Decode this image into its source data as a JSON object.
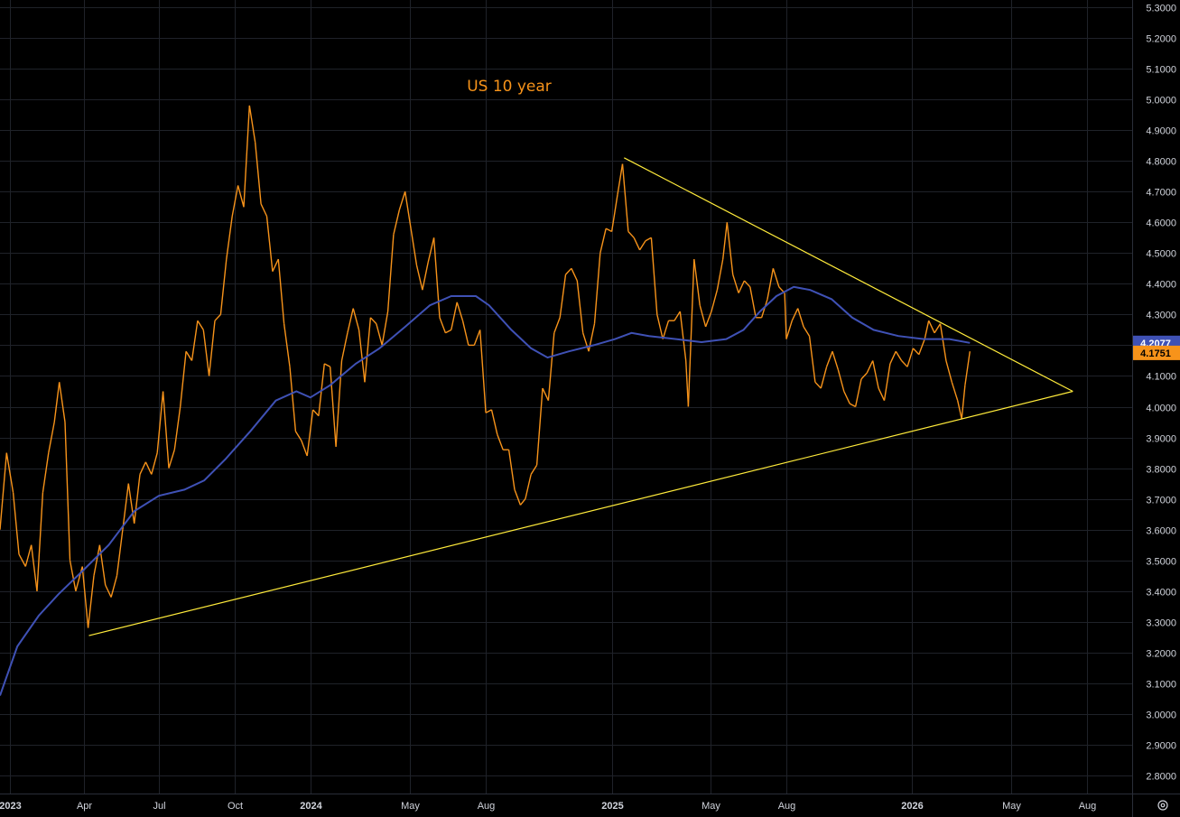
{
  "chart_data": {
    "type": "line",
    "title": "US 10 year",
    "xlabel": "",
    "ylabel": "",
    "ylim": [
      2.75,
      5.32
    ],
    "xlim": [
      "2022-12-20",
      "2026-09-25"
    ],
    "y_ticks": [
      "5.3000",
      "5.2000",
      "5.1000",
      "5.0000",
      "4.9000",
      "4.8000",
      "4.7000",
      "4.6000",
      "4.5000",
      "4.4000",
      "4.3000",
      "4.2000",
      "4.1000",
      "4.0000",
      "3.9000",
      "3.8000",
      "3.7000",
      "3.6000",
      "3.5000",
      "3.4000",
      "3.3000",
      "3.2000",
      "3.1000",
      "3.0000",
      "2.9000",
      "2.8000"
    ],
    "x_ticks": [
      {
        "label": "2023",
        "date": "2023-01-01",
        "major": true
      },
      {
        "label": "Apr",
        "date": "2023-04-01",
        "major": false
      },
      {
        "label": "Jul",
        "date": "2023-07-01",
        "major": false
      },
      {
        "label": "Oct",
        "date": "2023-10-01",
        "major": false
      },
      {
        "label": "2024",
        "date": "2024-01-01",
        "major": true
      },
      {
        "label": "May",
        "date": "2024-05-01",
        "major": false
      },
      {
        "label": "Aug",
        "date": "2024-08-01",
        "major": false
      },
      {
        "label": "2025",
        "date": "2025-01-01",
        "major": true
      },
      {
        "label": "May",
        "date": "2025-05-01",
        "major": false
      },
      {
        "label": "Aug",
        "date": "2025-08-01",
        "major": false
      },
      {
        "label": "2026",
        "date": "2026-01-01",
        "major": true
      },
      {
        "label": "May",
        "date": "2026-05-01",
        "major": false
      },
      {
        "label": "Aug",
        "date": "2026-08-01",
        "major": false
      }
    ],
    "series": [
      {
        "color": "#f7931a",
        "points": [
          [
            "2022-12-20",
            3.6
          ],
          [
            "2022-12-28",
            3.85
          ],
          [
            "2023-01-05",
            3.72
          ],
          [
            "2023-01-12",
            3.52
          ],
          [
            "2023-01-20",
            3.48
          ],
          [
            "2023-01-27",
            3.55
          ],
          [
            "2023-02-03",
            3.4
          ],
          [
            "2023-02-10",
            3.72
          ],
          [
            "2023-02-17",
            3.85
          ],
          [
            "2023-02-24",
            3.95
          ],
          [
            "2023-03-02",
            4.08
          ],
          [
            "2023-03-09",
            3.95
          ],
          [
            "2023-03-15",
            3.5
          ],
          [
            "2023-03-22",
            3.4
          ],
          [
            "2023-03-30",
            3.48
          ],
          [
            "2023-04-06",
            3.28
          ],
          [
            "2023-04-13",
            3.45
          ],
          [
            "2023-04-20",
            3.55
          ],
          [
            "2023-04-27",
            3.42
          ],
          [
            "2023-05-04",
            3.38
          ],
          [
            "2023-05-11",
            3.45
          ],
          [
            "2023-05-18",
            3.6
          ],
          [
            "2023-05-25",
            3.75
          ],
          [
            "2023-06-01",
            3.62
          ],
          [
            "2023-06-08",
            3.78
          ],
          [
            "2023-06-15",
            3.82
          ],
          [
            "2023-06-22",
            3.78
          ],
          [
            "2023-06-29",
            3.85
          ],
          [
            "2023-07-06",
            4.05
          ],
          [
            "2023-07-13",
            3.8
          ],
          [
            "2023-07-20",
            3.86
          ],
          [
            "2023-07-27",
            4.0
          ],
          [
            "2023-08-03",
            4.18
          ],
          [
            "2023-08-10",
            4.15
          ],
          [
            "2023-08-17",
            4.28
          ],
          [
            "2023-08-24",
            4.25
          ],
          [
            "2023-08-31",
            4.1
          ],
          [
            "2023-09-07",
            4.28
          ],
          [
            "2023-09-14",
            4.3
          ],
          [
            "2023-09-21",
            4.48
          ],
          [
            "2023-09-28",
            4.62
          ],
          [
            "2023-10-05",
            4.72
          ],
          [
            "2023-10-12",
            4.65
          ],
          [
            "2023-10-19",
            4.98
          ],
          [
            "2023-10-26",
            4.86
          ],
          [
            "2023-11-02",
            4.66
          ],
          [
            "2023-11-09",
            4.62
          ],
          [
            "2023-11-16",
            4.44
          ],
          [
            "2023-11-23",
            4.48
          ],
          [
            "2023-11-30",
            4.27
          ],
          [
            "2023-12-07",
            4.13
          ],
          [
            "2023-12-14",
            3.92
          ],
          [
            "2023-12-21",
            3.89
          ],
          [
            "2023-12-28",
            3.84
          ],
          [
            "2024-01-04",
            3.99
          ],
          [
            "2024-01-11",
            3.97
          ],
          [
            "2024-01-18",
            4.14
          ],
          [
            "2024-01-25",
            4.13
          ],
          [
            "2024-02-01",
            3.87
          ],
          [
            "2024-02-08",
            4.15
          ],
          [
            "2024-02-15",
            4.24
          ],
          [
            "2024-02-22",
            4.32
          ],
          [
            "2024-02-29",
            4.25
          ],
          [
            "2024-03-07",
            4.08
          ],
          [
            "2024-03-14",
            4.29
          ],
          [
            "2024-03-21",
            4.27
          ],
          [
            "2024-03-28",
            4.2
          ],
          [
            "2024-04-04",
            4.31
          ],
          [
            "2024-04-11",
            4.56
          ],
          [
            "2024-04-18",
            4.64
          ],
          [
            "2024-04-25",
            4.7
          ],
          [
            "2024-05-02",
            4.58
          ],
          [
            "2024-05-09",
            4.46
          ],
          [
            "2024-05-16",
            4.38
          ],
          [
            "2024-05-23",
            4.47
          ],
          [
            "2024-05-30",
            4.55
          ],
          [
            "2024-06-06",
            4.29
          ],
          [
            "2024-06-13",
            4.24
          ],
          [
            "2024-06-20",
            4.25
          ],
          [
            "2024-06-27",
            4.34
          ],
          [
            "2024-07-04",
            4.28
          ],
          [
            "2024-07-11",
            4.2
          ],
          [
            "2024-07-18",
            4.2
          ],
          [
            "2024-07-25",
            4.25
          ],
          [
            "2024-08-01",
            3.98
          ],
          [
            "2024-08-08",
            3.99
          ],
          [
            "2024-08-15",
            3.91
          ],
          [
            "2024-08-22",
            3.86
          ],
          [
            "2024-08-29",
            3.86
          ],
          [
            "2024-09-05",
            3.73
          ],
          [
            "2024-09-12",
            3.68
          ],
          [
            "2024-09-18",
            3.7
          ],
          [
            "2024-09-25",
            3.78
          ],
          [
            "2024-10-02",
            3.81
          ],
          [
            "2024-10-09",
            4.06
          ],
          [
            "2024-10-16",
            4.02
          ],
          [
            "2024-10-23",
            4.24
          ],
          [
            "2024-10-30",
            4.29
          ],
          [
            "2024-11-06",
            4.43
          ],
          [
            "2024-11-13",
            4.45
          ],
          [
            "2024-11-20",
            4.41
          ],
          [
            "2024-11-27",
            4.24
          ],
          [
            "2024-12-04",
            4.18
          ],
          [
            "2024-12-11",
            4.27
          ],
          [
            "2024-12-18",
            4.5
          ],
          [
            "2024-12-25",
            4.58
          ],
          [
            "2025-01-01",
            4.57
          ],
          [
            "2025-01-08",
            4.69
          ],
          [
            "2025-01-14",
            4.79
          ],
          [
            "2025-01-21",
            4.57
          ],
          [
            "2025-01-28",
            4.55
          ],
          [
            "2025-02-04",
            4.51
          ],
          [
            "2025-02-11",
            4.54
          ],
          [
            "2025-02-18",
            4.55
          ],
          [
            "2025-02-25",
            4.3
          ],
          [
            "2025-03-04",
            4.22
          ],
          [
            "2025-03-11",
            4.28
          ],
          [
            "2025-03-18",
            4.28
          ],
          [
            "2025-03-25",
            4.31
          ],
          [
            "2025-04-01",
            4.15
          ],
          [
            "2025-04-04",
            4.0
          ],
          [
            "2025-04-11",
            4.48
          ],
          [
            "2025-04-18",
            4.33
          ],
          [
            "2025-04-25",
            4.26
          ],
          [
            "2025-05-02",
            4.31
          ],
          [
            "2025-05-09",
            4.38
          ],
          [
            "2025-05-16",
            4.48
          ],
          [
            "2025-05-21",
            4.6
          ],
          [
            "2025-05-28",
            4.43
          ],
          [
            "2025-06-04",
            4.37
          ],
          [
            "2025-06-11",
            4.41
          ],
          [
            "2025-06-18",
            4.39
          ],
          [
            "2025-06-25",
            4.29
          ],
          [
            "2025-07-02",
            4.29
          ],
          [
            "2025-07-09",
            4.35
          ],
          [
            "2025-07-16",
            4.45
          ],
          [
            "2025-07-23",
            4.39
          ],
          [
            "2025-07-30",
            4.37
          ],
          [
            "2025-08-01",
            4.22
          ],
          [
            "2025-08-08",
            4.28
          ],
          [
            "2025-08-15",
            4.32
          ],
          [
            "2025-08-22",
            4.26
          ],
          [
            "2025-08-29",
            4.23
          ],
          [
            "2025-09-05",
            4.08
          ],
          [
            "2025-09-12",
            4.06
          ],
          [
            "2025-09-19",
            4.13
          ],
          [
            "2025-09-26",
            4.18
          ],
          [
            "2025-10-03",
            4.12
          ],
          [
            "2025-10-10",
            4.05
          ],
          [
            "2025-10-17",
            4.01
          ],
          [
            "2025-10-24",
            4.0
          ],
          [
            "2025-10-31",
            4.09
          ],
          [
            "2025-11-07",
            4.11
          ],
          [
            "2025-11-14",
            4.15
          ],
          [
            "2025-11-21",
            4.06
          ],
          [
            "2025-11-28",
            4.02
          ],
          [
            "2025-12-05",
            4.14
          ],
          [
            "2025-12-12",
            4.18
          ],
          [
            "2025-12-19",
            4.15
          ],
          [
            "2025-12-26",
            4.13
          ],
          [
            "2026-01-02",
            4.19
          ],
          [
            "2026-01-09",
            4.17
          ],
          [
            "2026-01-16",
            4.22
          ],
          [
            "2026-01-21",
            4.28
          ],
          [
            "2026-01-28",
            4.24
          ],
          [
            "2026-02-04",
            4.27
          ],
          [
            "2026-02-11",
            4.15
          ],
          [
            "2026-02-18",
            4.08
          ],
          [
            "2026-02-25",
            4.02
          ],
          [
            "2026-03-02",
            3.96
          ],
          [
            "2026-03-06",
            4.07
          ],
          [
            "2026-03-12",
            4.18
          ]
        ]
      },
      {
        "color": "#3f51b5",
        "points": [
          [
            "2022-12-20",
            3.06
          ],
          [
            "2023-01-10",
            3.22
          ],
          [
            "2023-02-05",
            3.32
          ],
          [
            "2023-03-01",
            3.39
          ],
          [
            "2023-04-01",
            3.47
          ],
          [
            "2023-05-01",
            3.55
          ],
          [
            "2023-06-01",
            3.66
          ],
          [
            "2023-07-01",
            3.71
          ],
          [
            "2023-08-01",
            3.73
          ],
          [
            "2023-08-25",
            3.76
          ],
          [
            "2023-09-20",
            3.83
          ],
          [
            "2023-10-20",
            3.92
          ],
          [
            "2023-11-20",
            4.02
          ],
          [
            "2023-12-15",
            4.05
          ],
          [
            "2024-01-01",
            4.03
          ],
          [
            "2024-01-25",
            4.07
          ],
          [
            "2024-02-25",
            4.14
          ],
          [
            "2024-03-25",
            4.19
          ],
          [
            "2024-04-25",
            4.26
          ],
          [
            "2024-05-25",
            4.33
          ],
          [
            "2024-06-20",
            4.36
          ],
          [
            "2024-07-20",
            4.36
          ],
          [
            "2024-08-05",
            4.33
          ],
          [
            "2024-09-01",
            4.25
          ],
          [
            "2024-09-25",
            4.19
          ],
          [
            "2024-10-15",
            4.16
          ],
          [
            "2024-11-10",
            4.18
          ],
          [
            "2024-12-10",
            4.2
          ],
          [
            "2025-01-05",
            4.22
          ],
          [
            "2025-01-25",
            4.24
          ],
          [
            "2025-02-15",
            4.23
          ],
          [
            "2025-03-20",
            4.22
          ],
          [
            "2025-04-20",
            4.21
          ],
          [
            "2025-05-20",
            4.22
          ],
          [
            "2025-06-10",
            4.25
          ],
          [
            "2025-06-30",
            4.31
          ],
          [
            "2025-07-20",
            4.36
          ],
          [
            "2025-08-10",
            4.39
          ],
          [
            "2025-08-30",
            4.38
          ],
          [
            "2025-09-25",
            4.35
          ],
          [
            "2025-10-20",
            4.29
          ],
          [
            "2025-11-15",
            4.25
          ],
          [
            "2025-12-15",
            4.23
          ],
          [
            "2026-01-15",
            4.22
          ],
          [
            "2026-02-15",
            4.22
          ],
          [
            "2026-03-12",
            4.2077
          ]
        ]
      }
    ],
    "trendlines": [
      {
        "color": "#ffeb3b",
        "from": [
          "2023-04-07",
          3.255
        ],
        "to": [
          "2026-07-15",
          4.05
        ]
      },
      {
        "color": "#ffeb3b",
        "from": [
          "2025-01-16",
          4.81
        ],
        "to": [
          "2026-07-15",
          4.05
        ]
      }
    ],
    "price_labels": [
      {
        "value": 4.2077,
        "text": "4.2077",
        "color": "#3f51b5",
        "text_color": "#ffffff"
      },
      {
        "value": 4.1751,
        "text": "4.1751",
        "color": "#f7931a",
        "text_color": "#000000"
      }
    ]
  }
}
